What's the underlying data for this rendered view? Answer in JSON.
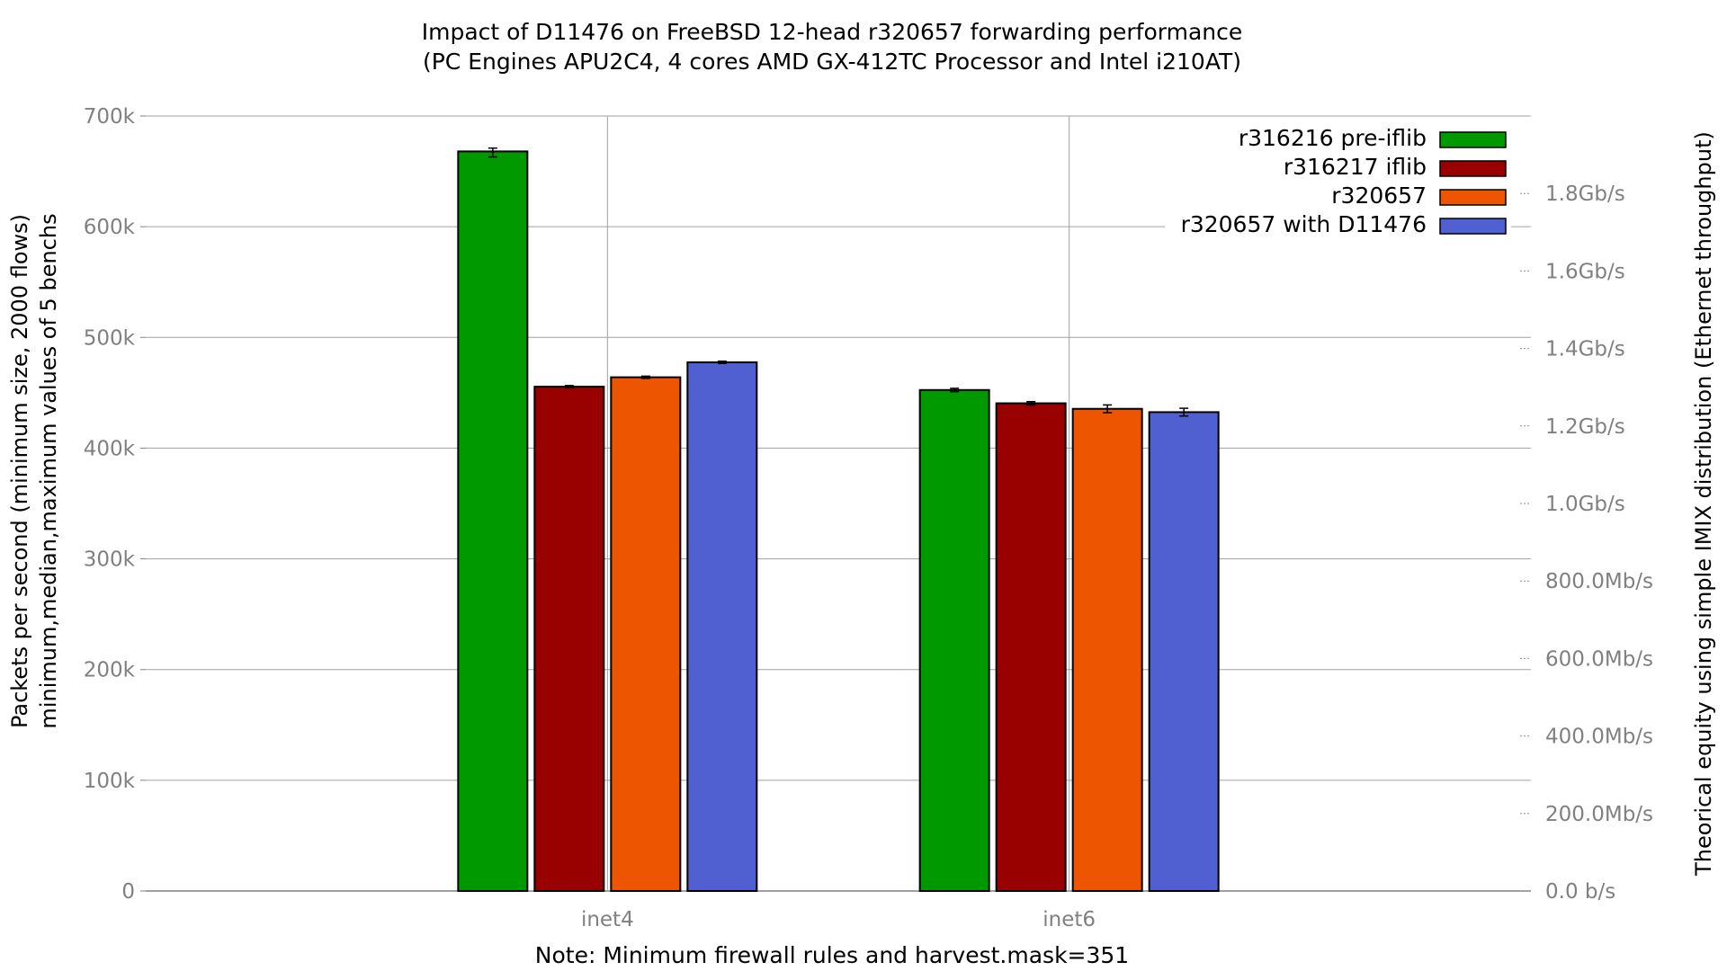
{
  "chart_data": {
    "type": "bar",
    "title": "Impact of D11476 on FreeBSD 12-head r320657 forwarding performance",
    "subtitle": "(PC Engines APU2C4, 4 cores AMD GX-412TC Processor and Intel i210AT)",
    "note": "Note: Minimum firewall rules and harvest.mask=351",
    "ylabel_line1": "Packets per second (minimum size, 2000 flows)",
    "ylabel_line2": "minimum,median,maximum values of 5 benchs",
    "y2label": "Theorical equity using simple IMIX distribution (Ethernet throughput)",
    "categories": [
      "inet4",
      "inet6"
    ],
    "ylim": [
      0,
      700000
    ],
    "yticks": [
      0,
      100000,
      200000,
      300000,
      400000,
      500000,
      600000,
      700000
    ],
    "ytick_labels": [
      "0",
      "100k",
      "200k",
      "300k",
      "400k",
      "500k",
      "600k",
      "700k"
    ],
    "y2_ticks_bps": [
      0,
      200000000,
      400000000,
      600000000,
      800000000,
      1000000000,
      1200000000,
      1400000000,
      1600000000,
      1800000000
    ],
    "y2_tick_labels": [
      "0.0 b/s",
      "200.0Mb/s",
      "400.0Mb/s",
      "600.0Mb/s",
      "800.0Mb/s",
      "1.0Gb/s",
      "1.2Gb/s",
      "1.4Gb/s",
      "1.6Gb/s",
      "1.8Gb/s"
    ],
    "y2_bps_at_ymax": 2000000000,
    "grid": true,
    "legend_position": "top-right",
    "series": [
      {
        "name": "r316216 pre-iflib",
        "color": "#009900",
        "values": [
          668000,
          452500
        ],
        "min": [
          663000,
          451000
        ],
        "max": [
          671000,
          454000
        ]
      },
      {
        "name": "r316217 iflib",
        "color": "#990000",
        "values": [
          455500,
          440500
        ],
        "min": [
          454500,
          439000
        ],
        "max": [
          456500,
          442000
        ]
      },
      {
        "name": "r320657",
        "color": "#ee5500",
        "values": [
          464000,
          435500
        ],
        "min": [
          463000,
          432000
        ],
        "max": [
          465000,
          439000
        ]
      },
      {
        "name": "r320657 with D11476",
        "color": "#5060d0",
        "values": [
          477500,
          432500
        ],
        "min": [
          476500,
          429000
        ],
        "max": [
          478500,
          436000
        ]
      }
    ]
  }
}
